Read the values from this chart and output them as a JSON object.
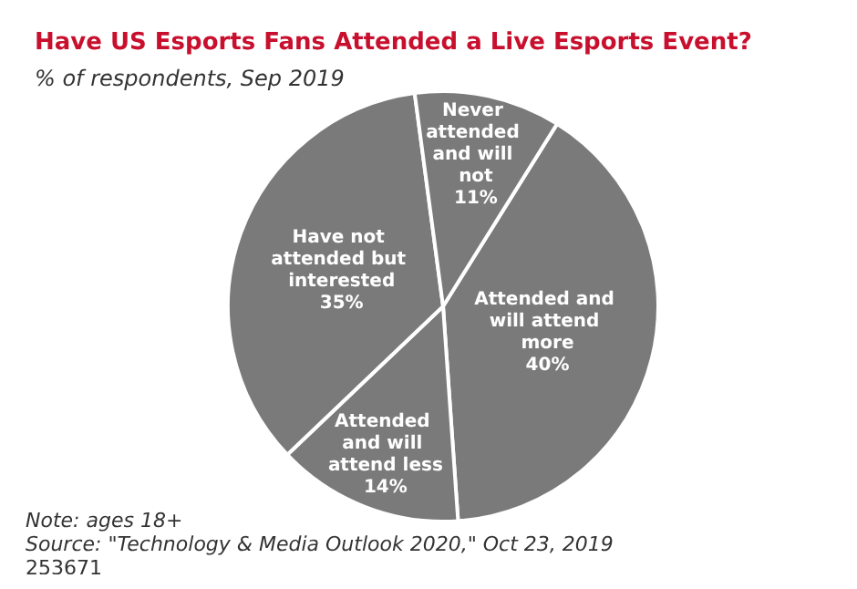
{
  "chart_data": {
    "type": "pie",
    "title": "Have US Esports Fans Attended a Live Esports Event?",
    "subtitle": "% of respondents, Sep 2019",
    "categories": [
      "Attended and will attend more",
      "Attended and will attend less",
      "Have not attended but interested",
      "Never attended and will not"
    ],
    "values": [
      40,
      14,
      35,
      11
    ],
    "value_labels": [
      "40%",
      "14%",
      "35%",
      "11%"
    ],
    "colors": [
      "#7a7a7a",
      "#7a7a7a",
      "#7a7a7a",
      "#7a7a7a"
    ],
    "legend": false,
    "annotations": [
      "Note: ages 18+",
      "Source: \"Technology & Media Outlook 2020,\" Oct 23, 2019",
      "253671"
    ]
  }
}
